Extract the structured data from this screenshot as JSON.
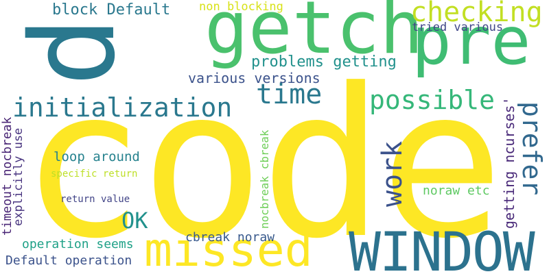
{
  "words": [
    {
      "id": "code",
      "text": "code",
      "color": "#fde725"
    },
    {
      "id": "p",
      "text": "p",
      "color": "#2a788e"
    },
    {
      "id": "getch",
      "text": "getch",
      "color": "#4ac16d"
    },
    {
      "id": "pre",
      "text": "pre",
      "color": "#3fbc73"
    },
    {
      "id": "window",
      "text": "WINDOW",
      "color": "#2c728e"
    },
    {
      "id": "missed",
      "text": "missed",
      "color": "#fde725"
    },
    {
      "id": "checking",
      "text": "checking",
      "color": "#c2df23"
    },
    {
      "id": "initialization",
      "text": "initialization",
      "color": "#2a788e"
    },
    {
      "id": "possible",
      "text": "possible",
      "color": "#35b779"
    },
    {
      "id": "prefer",
      "text": "prefer",
      "color": "#31688e"
    },
    {
      "id": "time",
      "text": "time",
      "color": "#2a788e"
    },
    {
      "id": "work",
      "text": "work",
      "color": "#3b528b"
    },
    {
      "id": "ok",
      "text": "OK",
      "color": "#21918c"
    },
    {
      "id": "block-default",
      "text": "block Default",
      "color": "#2a788e"
    },
    {
      "id": "non-blocking",
      "text": "non blocking",
      "color": "#d8e219"
    },
    {
      "id": "tried-various",
      "text": "tried various",
      "color": "#404688"
    },
    {
      "id": "problems-getting",
      "text": "problems getting",
      "color": "#21918c"
    },
    {
      "id": "various-versions",
      "text": "various versions",
      "color": "#3b528b"
    },
    {
      "id": "getting-ncurses",
      "text": "getting ncurses'",
      "color": "#482878"
    },
    {
      "id": "loop-around",
      "text": "loop around",
      "color": "#26828e"
    },
    {
      "id": "specific-return",
      "text": "specific return",
      "color": "#bddf26"
    },
    {
      "id": "return-value",
      "text": "return value",
      "color": "#414487"
    },
    {
      "id": "noraw-etc",
      "text": "noraw etc",
      "color": "#5ec962"
    },
    {
      "id": "nocbreak-cbreak",
      "text": "nocbreak cbreak",
      "color": "#6ece58"
    },
    {
      "id": "cbreak-noraw",
      "text": "cbreak noraw",
      "color": "#38598c"
    },
    {
      "id": "operation-seems",
      "text": "operation seems",
      "color": "#1fa187"
    },
    {
      "id": "default-operation",
      "text": "Default operation",
      "color": "#3b528b"
    },
    {
      "id": "timeout-nocbreak",
      "text": "timeout nocbreak",
      "color": "#482475"
    },
    {
      "id": "explicitly-use",
      "text": "explicitly use",
      "color": "#46327e"
    }
  ]
}
